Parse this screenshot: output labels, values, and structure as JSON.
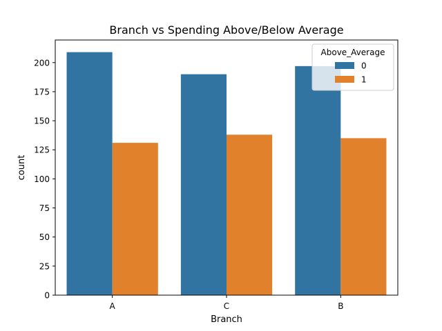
{
  "chart_data": {
    "type": "bar",
    "title": "Branch vs Spending Above/Below Average",
    "xlabel": "Branch",
    "ylabel": "count",
    "categories": [
      "A",
      "C",
      "B"
    ],
    "series": [
      {
        "name": "0",
        "values": [
          209,
          190,
          197
        ],
        "color": "#3274a1"
      },
      {
        "name": "1",
        "values": [
          131,
          138,
          135
        ],
        "color": "#e1812c"
      }
    ],
    "ylim": [
      0,
      219.45
    ],
    "yticks": [
      0,
      25,
      50,
      75,
      100,
      125,
      150,
      175,
      200
    ],
    "grid": false,
    "legend": {
      "title": "Above_Average",
      "placement": "top-right"
    }
  }
}
